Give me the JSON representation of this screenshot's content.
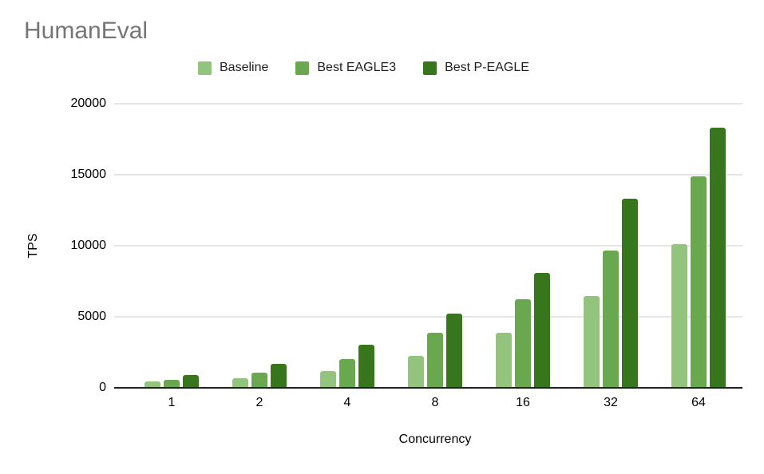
{
  "title": "HumanEval",
  "axes": {
    "y_title": "TPS",
    "x_title": "Concurrency"
  },
  "chart_data": {
    "type": "bar",
    "title": "HumanEval",
    "xlabel": "Concurrency",
    "ylabel": "TPS",
    "categories": [
      "1",
      "2",
      "4",
      "8",
      "16",
      "32",
      "64"
    ],
    "series": [
      {
        "name": "Baseline",
        "color": "#93c47d",
        "values": [
          430,
          700,
          1200,
          2250,
          3850,
          6450,
          10100
        ]
      },
      {
        "name": "Best EAGLE3",
        "color": "#6aa84f",
        "values": [
          550,
          1050,
          2050,
          3850,
          6250,
          9650,
          14900
        ]
      },
      {
        "name": "Best P-EAGLE",
        "color": "#38761d",
        "values": [
          900,
          1700,
          3050,
          5250,
          8100,
          13300,
          18300
        ]
      }
    ],
    "ylim": [
      0,
      20000
    ],
    "yticks": [
      0,
      5000,
      10000,
      15000,
      20000
    ],
    "grid": true,
    "legend_position": "top"
  },
  "colors": {
    "gridline": "#e6e6e6",
    "axis_line": "#212121",
    "title_text": "#757575"
  }
}
